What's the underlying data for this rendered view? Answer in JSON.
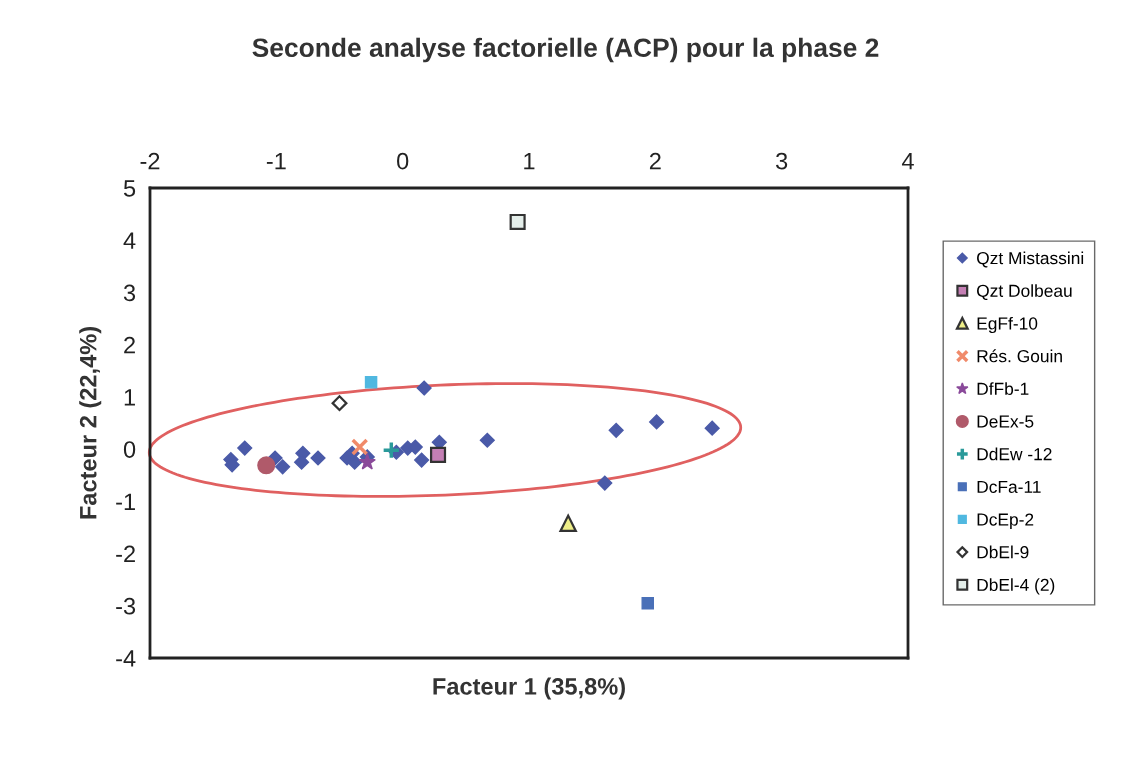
{
  "chart_data": {
    "type": "scatter",
    "title": "Seconde analyse factorielle (ACP) pour la phase 2",
    "xlabel": "Facteur 1 (35,8%)",
    "ylabel": "Facteur 2 (22,4%)",
    "xlim": [
      -2,
      4
    ],
    "xticks": [
      -2,
      -1,
      0,
      1,
      2,
      3,
      4
    ],
    "ylim": [
      -4,
      5
    ],
    "yticks": [
      -4,
      -3,
      -2,
      -1,
      0,
      1,
      2,
      3,
      4,
      5
    ],
    "grid": false,
    "legend": "right",
    "series": [
      {
        "name": "Qzt Mistassini",
        "color": "#4a5aa8",
        "marker": "diamond",
        "x": [
          -1.36,
          -1.35,
          -1.25,
          -1.01,
          -0.95,
          -0.79,
          -0.8,
          -0.67,
          -0.44,
          -0.38,
          -0.4,
          -0.28,
          -0.05,
          0.04,
          0.1,
          0.15,
          0.29,
          0.17,
          0.67,
          1.69,
          2.01,
          2.45,
          1.6
        ],
        "values": [
          -0.2,
          -0.3,
          0.02,
          -0.17,
          -0.34,
          -0.08,
          -0.25,
          -0.17,
          -0.17,
          -0.25,
          -0.08,
          -0.15,
          -0.06,
          0.02,
          0.04,
          -0.21,
          0.13,
          1.17,
          0.17,
          0.36,
          0.52,
          0.4,
          -0.65
        ]
      },
      {
        "name": "Qzt Dolbeau",
        "color": "#c47fb4",
        "marker": "square",
        "x": [
          0.28
        ],
        "values": [
          -0.11
        ]
      },
      {
        "name": "EgFf-10",
        "color": "#eeee88",
        "marker": "triangle",
        "x": [
          1.31
        ],
        "values": [
          -1.42
        ]
      },
      {
        "name": "Rés. Gouin",
        "color": "#f08a6a",
        "marker": "cross",
        "x": [
          -0.34
        ],
        "values": [
          0.04
        ]
      },
      {
        "name": "DfFb-1",
        "color": "#8a4a9a",
        "marker": "star",
        "x": [
          -0.28
        ],
        "values": [
          -0.25
        ]
      },
      {
        "name": "DeEx-5",
        "color": "#b05a6a",
        "marker": "circle",
        "x": [
          -1.08
        ],
        "values": [
          -0.31
        ]
      },
      {
        "name": "DdEw -12",
        "color": "#2a9a9a",
        "marker": "plus",
        "x": [
          -0.09
        ],
        "values": [
          -0.02
        ]
      },
      {
        "name": "DcFa-11",
        "color": "#4a70b8",
        "marker": "square",
        "x": [
          1.94
        ],
        "values": [
          -2.95
        ]
      },
      {
        "name": "DcEp-2",
        "color": "#50b8e0",
        "marker": "square",
        "x": [
          -0.25
        ],
        "values": [
          1.28
        ]
      },
      {
        "name": "DbEl-9",
        "color": "#ffffff",
        "marker": "diamond",
        "x": [
          -0.5
        ],
        "values": [
          0.88
        ]
      },
      {
        "name": "DbEl-4 (2)",
        "color": "#e4eeea",
        "marker": "square",
        "x": [
          0.91
        ],
        "values": [
          4.35
        ]
      }
    ]
  }
}
